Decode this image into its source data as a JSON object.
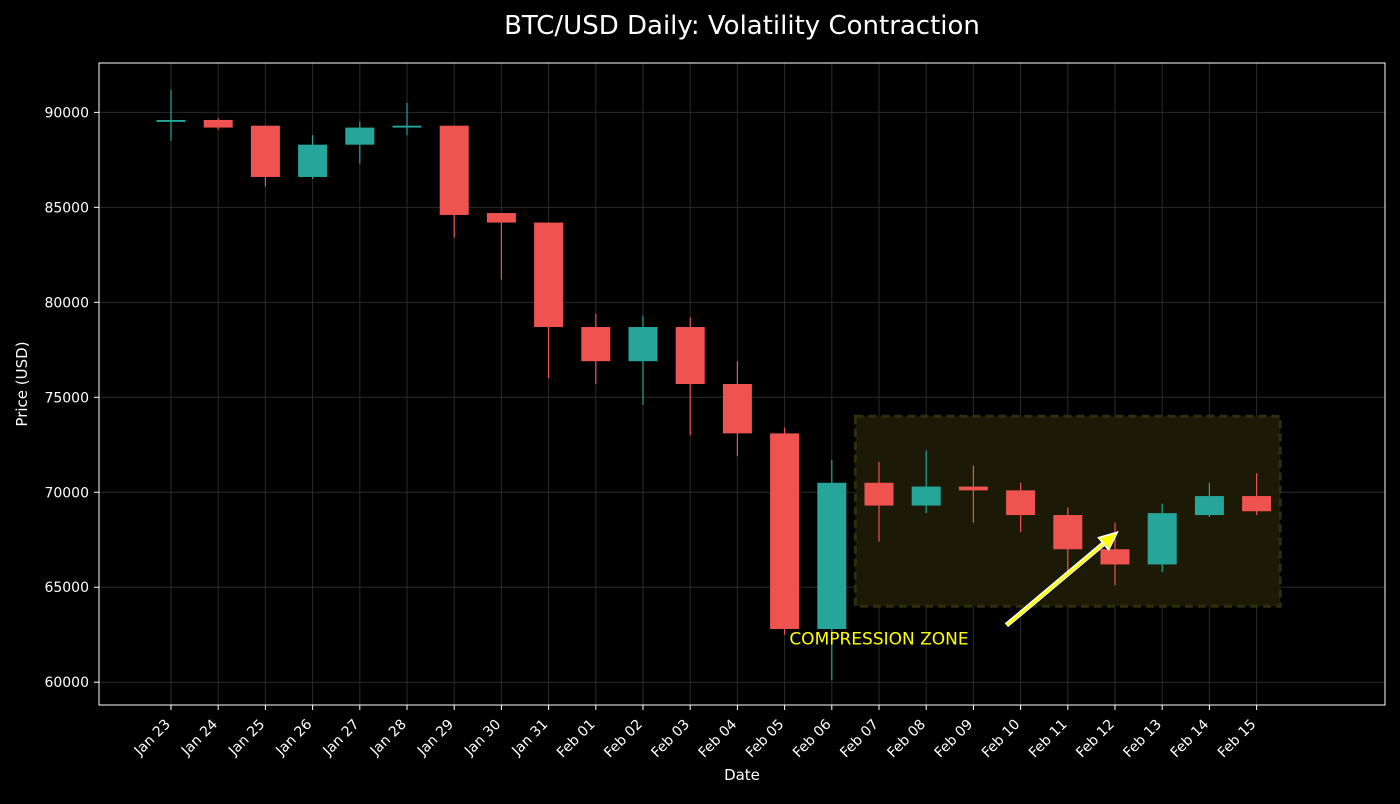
{
  "chart_data": {
    "type": "candlestick",
    "title": "BTC/USD Daily: Volatility Contraction",
    "xlabel": "Date",
    "ylabel": "Price (USD)",
    "ylim": [
      58800,
      92600
    ],
    "yticks": [
      60000,
      65000,
      70000,
      75000,
      80000,
      85000,
      90000
    ],
    "grid": true,
    "colors": {
      "up": "#26a69a",
      "down": "#ef5350",
      "background": "#000000",
      "axes": "#ffffff",
      "grid": "#2a2a2a",
      "annotation": "#ffff00",
      "zone_fill": "#1c1a06",
      "zone_border": "#2e2e0c"
    },
    "categories": [
      "Jan 23",
      "Jan 24",
      "Jan 25",
      "Jan 26",
      "Jan 27",
      "Jan 28",
      "Jan 29",
      "Jan 30",
      "Jan 31",
      "Feb 01",
      "Feb 02",
      "Feb 03",
      "Feb 04",
      "Feb 05",
      "Feb 06",
      "Feb 07",
      "Feb 08",
      "Feb 09",
      "Feb 10",
      "Feb 11",
      "Feb 12",
      "Feb 13",
      "Feb 14",
      "Feb 15"
    ],
    "candles": [
      {
        "date": "Jan 23",
        "open": 89500,
        "high": 91200,
        "low": 88500,
        "close": 89600
      },
      {
        "date": "Jan 24",
        "open": 89600,
        "high": 89700,
        "low": 89100,
        "close": 89200
      },
      {
        "date": "Jan 25",
        "open": 89300,
        "high": 89300,
        "low": 86100,
        "close": 86600
      },
      {
        "date": "Jan 26",
        "open": 86600,
        "high": 88800,
        "low": 86500,
        "close": 88300
      },
      {
        "date": "Jan 27",
        "open": 88300,
        "high": 89500,
        "low": 87300,
        "close": 89200
      },
      {
        "date": "Jan 28",
        "open": 89200,
        "high": 90500,
        "low": 88800,
        "close": 89300
      },
      {
        "date": "Jan 29",
        "open": 89300,
        "high": 89300,
        "low": 83400,
        "close": 84600
      },
      {
        "date": "Jan 30",
        "open": 84700,
        "high": 84700,
        "low": 81200,
        "close": 84200
      },
      {
        "date": "Jan 31",
        "open": 84200,
        "high": 84200,
        "low": 76000,
        "close": 78700
      },
      {
        "date": "Feb 01",
        "open": 78700,
        "high": 79400,
        "low": 75700,
        "close": 76900
      },
      {
        "date": "Feb 02",
        "open": 76900,
        "high": 79300,
        "low": 74600,
        "close": 78700
      },
      {
        "date": "Feb 03",
        "open": 78700,
        "high": 79200,
        "low": 73000,
        "close": 75700
      },
      {
        "date": "Feb 04",
        "open": 75700,
        "high": 76900,
        "low": 71900,
        "close": 73100
      },
      {
        "date": "Feb 05",
        "open": 73100,
        "high": 73400,
        "low": 62500,
        "close": 62800
      },
      {
        "date": "Feb 06",
        "open": 62800,
        "high": 71700,
        "low": 60100,
        "close": 70500
      },
      {
        "date": "Feb 07",
        "open": 70500,
        "high": 71600,
        "low": 67400,
        "close": 69300
      },
      {
        "date": "Feb 08",
        "open": 69300,
        "high": 72200,
        "low": 68900,
        "close": 70300
      },
      {
        "date": "Feb 09",
        "open": 70300,
        "high": 71400,
        "low": 68400,
        "close": 70100
      },
      {
        "date": "Feb 10",
        "open": 70100,
        "high": 70500,
        "low": 67900,
        "close": 68800
      },
      {
        "date": "Feb 11",
        "open": 68800,
        "high": 69200,
        "low": 65800,
        "close": 67000
      },
      {
        "date": "Feb 12",
        "open": 67000,
        "high": 68400,
        "low": 65100,
        "close": 66200
      },
      {
        "date": "Feb 13",
        "open": 66200,
        "high": 69400,
        "low": 65800,
        "close": 68900
      },
      {
        "date": "Feb 14",
        "open": 68800,
        "high": 70500,
        "low": 68700,
        "close": 69800
      },
      {
        "date": "Feb 15",
        "open": 69800,
        "high": 71000,
        "low": 68800,
        "close": 69000
      }
    ],
    "annotations": [
      {
        "type": "highlight_zone",
        "x_from": 15.5,
        "x_to": 24.5,
        "y_from": 64000,
        "y_to": 74000
      },
      {
        "type": "arrow_text",
        "text": "COMPRESSION ZONE",
        "text_x": 14.1,
        "text_y": 62300,
        "from_x": 18.7,
        "from_y": 63000,
        "to_x": 21.05,
        "to_y": 67900
      }
    ]
  }
}
